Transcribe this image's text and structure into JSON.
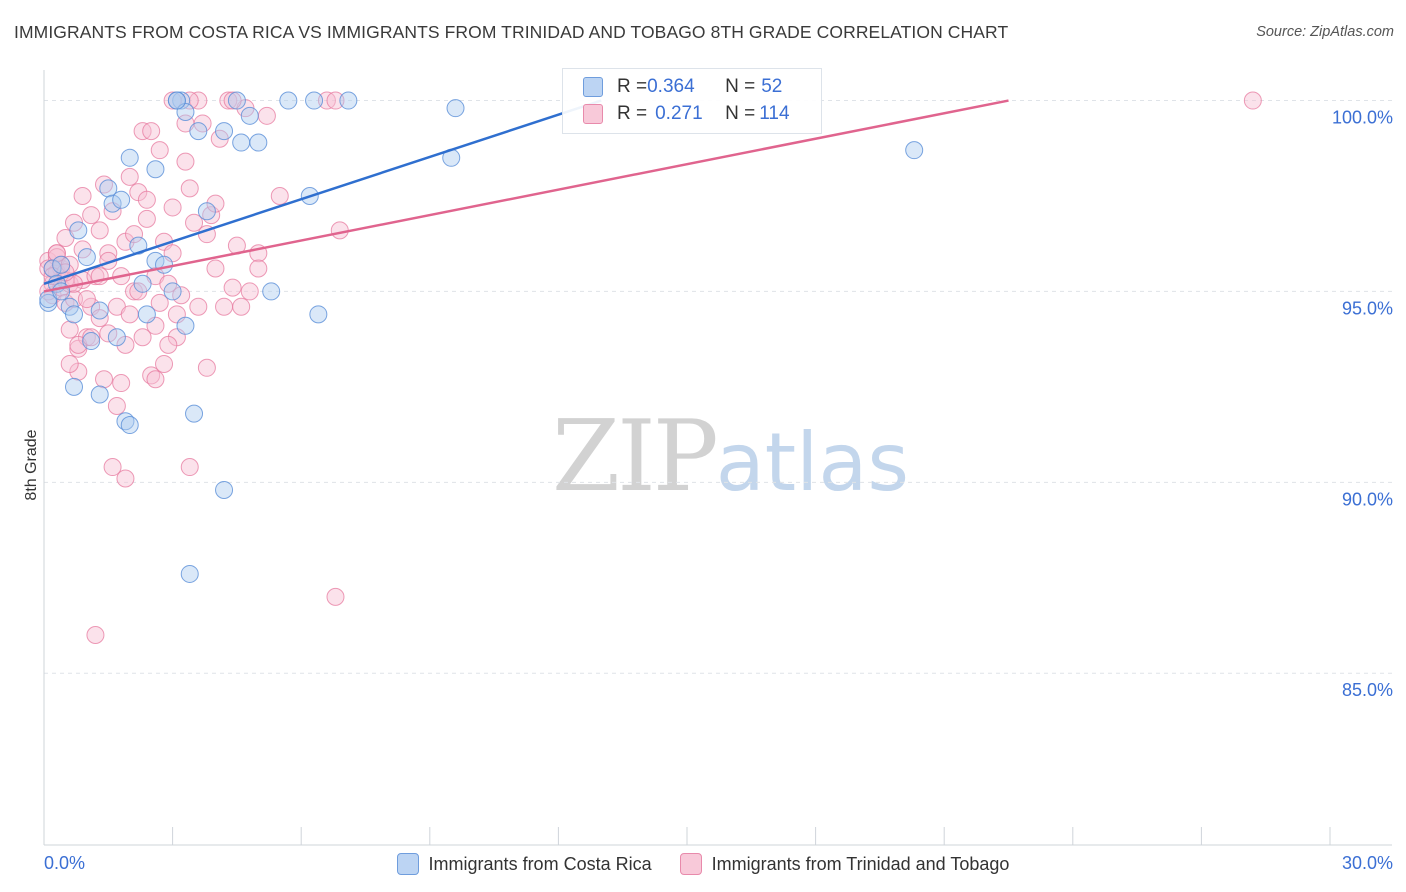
{
  "header": {
    "title": "IMMIGRANTS FROM COSTA RICA VS IMMIGRANTS FROM TRINIDAD AND TOBAGO 8TH GRADE CORRELATION CHART",
    "source": "Source: ZipAtlas.com"
  },
  "watermark": {
    "part1": "ZIP",
    "part2": "atlas"
  },
  "legend": {
    "series1": {
      "r_label": "R = ",
      "r_value": "0.364",
      "n_label": "N = ",
      "n_value": "52"
    },
    "series2": {
      "r_label": "R = ",
      "r_value": "0.271",
      "n_label": "N = ",
      "n_value": "114"
    }
  },
  "colors": {
    "blue_fill": "#aecbf0",
    "blue_stroke": "#5a8fd8",
    "blue_line": "#2f6fcf",
    "pink_fill": "#f6bfd2",
    "pink_stroke": "#e7799f",
    "pink_line": "#e0648e",
    "grid": "#dfe3e8",
    "tick_label": "#3b6fd4"
  },
  "chart_data": {
    "type": "scatter",
    "title": "IMMIGRANTS FROM COSTA RICA VS IMMIGRANTS FROM TRINIDAD AND TOBAGO 8TH GRADE CORRELATION CHART",
    "xlabel": "",
    "ylabel": "8th Grade",
    "xlim": [
      0,
      30
    ],
    "ylim": [
      80.5,
      100.8
    ],
    "x_tick_labels": [
      "0.0%",
      "30.0%"
    ],
    "y_ticks": [
      85,
      90,
      95,
      100
    ],
    "y_tick_labels": [
      "85.0%",
      "90.0%",
      "95.0%",
      "100.0%"
    ],
    "series": [
      {
        "name": "Immigrants from Costa Rica",
        "color": "blue",
        "trend": {
          "x": [
            0,
            13.0
          ],
          "y": [
            95.2,
            100.0
          ]
        },
        "points": [
          [
            0.1,
            94.7
          ],
          [
            0.1,
            94.8
          ],
          [
            0.2,
            95.6
          ],
          [
            0.3,
            95.2
          ],
          [
            0.4,
            95.0
          ],
          [
            0.6,
            94.6
          ],
          [
            0.8,
            96.6
          ],
          [
            1.0,
            95.9
          ],
          [
            0.7,
            94.4
          ],
          [
            1.3,
            94.5
          ],
          [
            1.5,
            97.7
          ],
          [
            1.6,
            97.3
          ],
          [
            1.8,
            97.4
          ],
          [
            2.0,
            98.5
          ],
          [
            2.2,
            96.2
          ],
          [
            2.3,
            95.2
          ],
          [
            2.4,
            94.4
          ],
          [
            2.6,
            98.2
          ],
          [
            2.6,
            95.8
          ],
          [
            2.8,
            95.7
          ],
          [
            3.0,
            95.0
          ],
          [
            3.2,
            100.0
          ],
          [
            3.1,
            100.0
          ],
          [
            3.3,
            99.7
          ],
          [
            3.3,
            94.1
          ],
          [
            3.6,
            99.2
          ],
          [
            3.8,
            97.1
          ],
          [
            4.2,
            99.2
          ],
          [
            4.5,
            100.0
          ],
          [
            4.6,
            98.9
          ],
          [
            4.8,
            99.6
          ],
          [
            5.0,
            98.9
          ],
          [
            5.3,
            95.0
          ],
          [
            5.7,
            100.0
          ],
          [
            6.2,
            97.5
          ],
          [
            6.3,
            100.0
          ],
          [
            6.4,
            94.4
          ],
          [
            7.1,
            100.0
          ],
          [
            9.5,
            98.5
          ],
          [
            9.6,
            99.8
          ],
          [
            1.9,
            91.6
          ],
          [
            2.0,
            91.5
          ],
          [
            1.3,
            92.3
          ],
          [
            0.7,
            92.5
          ],
          [
            3.5,
            91.8
          ],
          [
            4.2,
            89.8
          ],
          [
            3.4,
            87.6
          ],
          [
            1.1,
            93.7
          ],
          [
            1.7,
            93.8
          ],
          [
            3.1,
            100.0
          ],
          [
            20.3,
            98.7
          ],
          [
            0.4,
            95.7
          ]
        ]
      },
      {
        "name": "Immigrants from Trinidad and Tobago",
        "color": "pink",
        "trend": {
          "x": [
            0,
            22.5
          ],
          "y": [
            95.0,
            100.0
          ]
        },
        "points": [
          [
            0.1,
            95.8
          ],
          [
            0.1,
            95.6
          ],
          [
            0.2,
            95.2
          ],
          [
            0.2,
            94.9
          ],
          [
            0.3,
            95.5
          ],
          [
            0.3,
            96.0
          ],
          [
            0.4,
            95.6
          ],
          [
            0.4,
            95.1
          ],
          [
            0.5,
            94.7
          ],
          [
            0.5,
            96.4
          ],
          [
            0.6,
            94.0
          ],
          [
            0.6,
            95.2
          ],
          [
            0.7,
            96.8
          ],
          [
            0.7,
            94.8
          ],
          [
            0.8,
            93.5
          ],
          [
            0.8,
            92.9
          ],
          [
            0.9,
            96.1
          ],
          [
            0.9,
            95.3
          ],
          [
            1.0,
            93.8
          ],
          [
            1.1,
            97.0
          ],
          [
            1.1,
            94.6
          ],
          [
            1.2,
            95.4
          ],
          [
            1.3,
            94.3
          ],
          [
            1.3,
            96.6
          ],
          [
            1.4,
            92.7
          ],
          [
            1.5,
            93.9
          ],
          [
            1.5,
            96.0
          ],
          [
            1.6,
            97.1
          ],
          [
            1.7,
            94.6
          ],
          [
            1.7,
            92.0
          ],
          [
            1.8,
            95.4
          ],
          [
            1.9,
            93.6
          ],
          [
            1.9,
            96.3
          ],
          [
            2.0,
            94.4
          ],
          [
            2.1,
            96.5
          ],
          [
            2.1,
            95.0
          ],
          [
            2.2,
            97.6
          ],
          [
            2.3,
            93.8
          ],
          [
            2.3,
            99.2
          ],
          [
            2.4,
            96.9
          ],
          [
            2.5,
            92.8
          ],
          [
            2.6,
            94.1
          ],
          [
            2.6,
            95.4
          ],
          [
            2.7,
            98.7
          ],
          [
            2.8,
            96.3
          ],
          [
            2.8,
            93.1
          ],
          [
            2.9,
            95.2
          ],
          [
            3.0,
            96.0
          ],
          [
            3.0,
            97.2
          ],
          [
            3.1,
            93.8
          ],
          [
            3.2,
            94.9
          ],
          [
            3.3,
            99.4
          ],
          [
            3.3,
            98.4
          ],
          [
            3.4,
            97.7
          ],
          [
            3.5,
            96.8
          ],
          [
            3.6,
            94.6
          ],
          [
            3.6,
            100.0
          ],
          [
            3.7,
            99.4
          ],
          [
            3.8,
            96.5
          ],
          [
            3.9,
            97.0
          ],
          [
            4.0,
            95.6
          ],
          [
            4.1,
            99.0
          ],
          [
            4.2,
            94.6
          ],
          [
            4.3,
            100.0
          ],
          [
            4.4,
            95.1
          ],
          [
            4.5,
            96.2
          ],
          [
            4.6,
            94.6
          ],
          [
            4.7,
            99.8
          ],
          [
            4.8,
            95.0
          ],
          [
            5.0,
            96.0
          ],
          [
            5.2,
            99.6
          ],
          [
            5.5,
            97.5
          ],
          [
            6.6,
            100.0
          ],
          [
            6.8,
            100.0
          ],
          [
            6.9,
            96.6
          ],
          [
            3.4,
            100.0
          ],
          [
            4.4,
            100.0
          ],
          [
            0.3,
            95.9
          ],
          [
            0.4,
            95.7
          ],
          [
            0.2,
            95.6
          ],
          [
            0.5,
            95.3
          ],
          [
            0.6,
            95.7
          ],
          [
            1.0,
            94.8
          ],
          [
            1.6,
            90.4
          ],
          [
            1.9,
            90.1
          ],
          [
            3.4,
            90.4
          ],
          [
            1.2,
            86.0
          ],
          [
            6.8,
            87.0
          ],
          [
            28.2,
            100.0
          ],
          [
            2.0,
            98.0
          ],
          [
            2.5,
            99.2
          ],
          [
            3.0,
            100.0
          ],
          [
            1.4,
            97.8
          ],
          [
            0.9,
            97.5
          ],
          [
            0.3,
            96.0
          ],
          [
            0.1,
            95.0
          ],
          [
            0.2,
            95.4
          ],
          [
            0.8,
            93.6
          ],
          [
            2.7,
            94.7
          ],
          [
            1.8,
            92.6
          ],
          [
            2.9,
            93.6
          ],
          [
            1.3,
            95.4
          ],
          [
            2.2,
            95.0
          ],
          [
            0.7,
            95.2
          ],
          [
            0.5,
            95.5
          ],
          [
            1.1,
            93.8
          ],
          [
            3.8,
            93.0
          ],
          [
            4.0,
            97.3
          ],
          [
            2.4,
            97.4
          ],
          [
            1.5,
            95.8
          ],
          [
            3.1,
            94.4
          ],
          [
            0.6,
            93.1
          ],
          [
            2.6,
            92.7
          ],
          [
            5.0,
            95.6
          ]
        ]
      }
    ]
  },
  "bottom_legend": {
    "series1_label": "Immigrants from Costa Rica",
    "series2_label": "Immigrants from Trinidad and Tobago"
  }
}
